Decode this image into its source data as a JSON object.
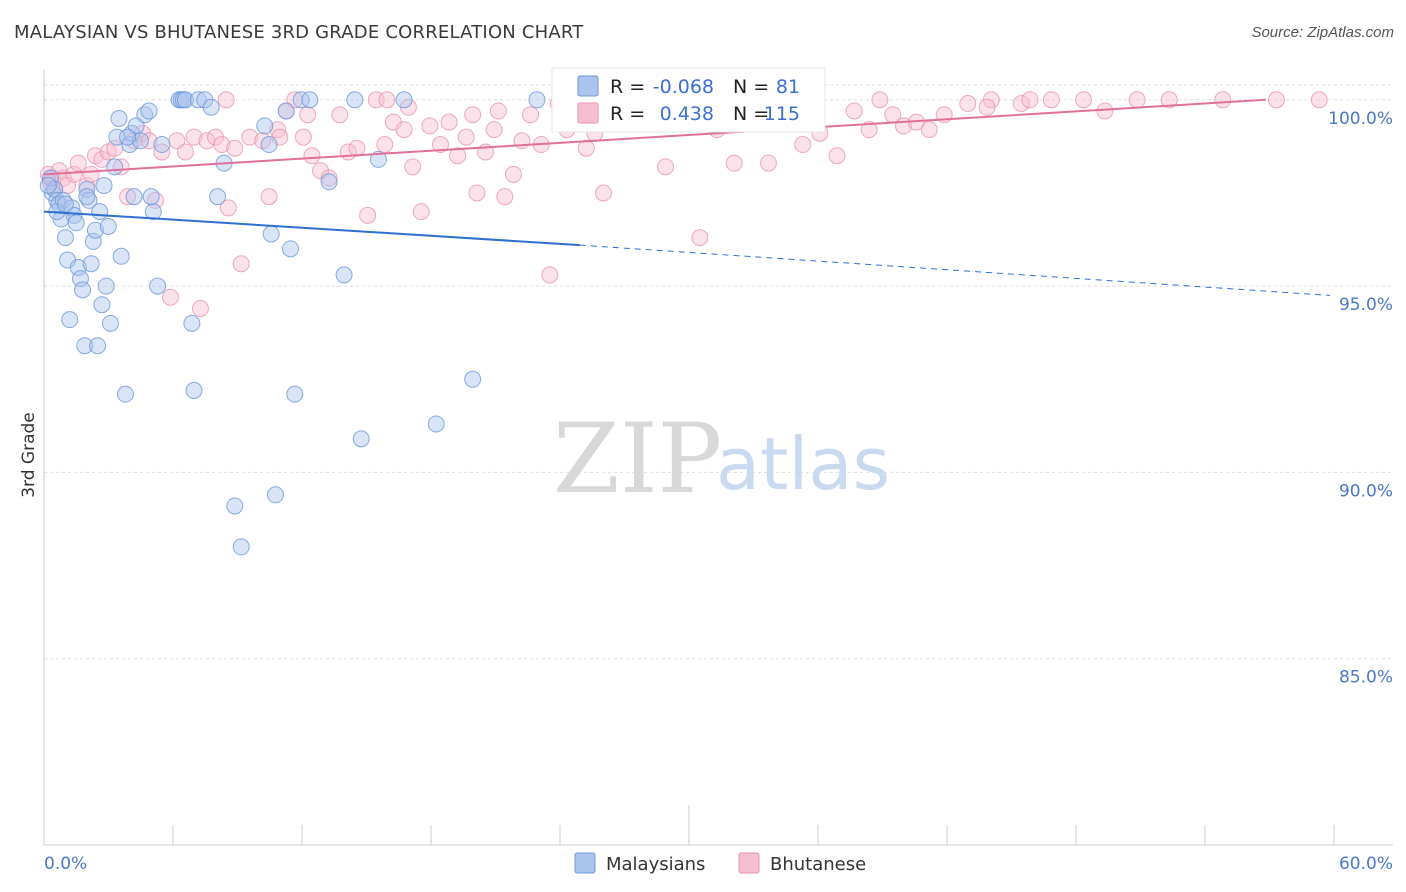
{
  "header": {
    "title": "MALAYSIAN VS BHUTANESE 3RD GRADE CORRELATION CHART",
    "source": "Source: ZipAtlas.com"
  },
  "watermark": {
    "zip": "ZIP",
    "atlas": "atlas"
  },
  "stats": {
    "r_label": "R =",
    "n_label": "N =",
    "rows": [
      {
        "r": "-0.068",
        "n": "81"
      },
      {
        "r": "0.438",
        "n": "115"
      }
    ]
  },
  "colors": {
    "malaysians_fill": "#aac4ee",
    "malaysians_stroke": "#6d97d9",
    "malaysians_line": "#2f6fd0",
    "bhutanese_fill": "#f6bfd0",
    "bhutanese_stroke": "#e895b2",
    "bhutanese_line": "#e0709a",
    "tick_text": "#4a78c8",
    "grid": "#dddddd"
  },
  "chart_data": {
    "type": "scatter",
    "title": "MALAYSIAN VS BHUTANESE 3RD GRADE CORRELATION CHART",
    "xlabel": "",
    "ylabel": "3rd Grade",
    "xlim": [
      0,
      60
    ],
    "ylim": [
      80,
      100.8
    ],
    "x_tick_labels": [
      "0.0%",
      "60.0%"
    ],
    "y_ticks": [
      85,
      90,
      95,
      100
    ],
    "y_tick_labels": [
      "85.0%",
      "90.0%",
      "95.0%",
      "100.0%"
    ],
    "grid": true,
    "legend_position": "bottom-center",
    "series": [
      {
        "name": "Malaysians",
        "r": -0.068,
        "n": 81,
        "trend": {
          "x0": 0,
          "y0": 97.0,
          "x1": 25,
          "y1": 96.1,
          "dashed_to_x": 60,
          "dashed_to_y": 94.75
        },
        "points": [
          [
            0.3,
            97.9
          ],
          [
            0.4,
            97.5
          ],
          [
            0.5,
            97.6
          ],
          [
            0.6,
            97.3
          ],
          [
            0.7,
            97.2
          ],
          [
            0.9,
            97.3
          ],
          [
            0.8,
            96.8
          ],
          [
            1.0,
            96.3
          ],
          [
            1.1,
            95.7
          ],
          [
            1.3,
            97.1
          ],
          [
            1.4,
            96.9
          ],
          [
            1.5,
            96.7
          ],
          [
            1.6,
            95.5
          ],
          [
            1.7,
            95.2
          ],
          [
            1.8,
            94.9
          ],
          [
            2.0,
            97.6
          ],
          [
            2.1,
            97.3
          ],
          [
            2.2,
            95.6
          ],
          [
            2.3,
            96.2
          ],
          [
            2.4,
            96.5
          ],
          [
            2.6,
            97.0
          ],
          [
            2.7,
            94.5
          ],
          [
            2.8,
            97.7
          ],
          [
            2.9,
            95.0
          ],
          [
            3.0,
            96.6
          ],
          [
            3.3,
            98.2
          ],
          [
            3.4,
            99.0
          ],
          [
            3.5,
            99.5
          ],
          [
            3.6,
            95.8
          ],
          [
            3.8,
            92.1
          ],
          [
            4.0,
            98.8
          ],
          [
            4.1,
            99.1
          ],
          [
            4.3,
            99.3
          ],
          [
            4.5,
            98.9
          ],
          [
            4.7,
            99.6
          ],
          [
            4.9,
            99.7
          ],
          [
            5.1,
            97.0
          ],
          [
            5.3,
            95.0
          ],
          [
            5.5,
            98.8
          ],
          [
            6.3,
            100.0
          ],
          [
            6.4,
            100.0
          ],
          [
            6.5,
            100.0
          ],
          [
            6.6,
            100.0
          ],
          [
            6.9,
            94.0
          ],
          [
            7.0,
            92.2
          ],
          [
            7.2,
            100.0
          ],
          [
            7.5,
            100.0
          ],
          [
            7.8,
            99.8
          ],
          [
            8.1,
            97.4
          ],
          [
            8.4,
            98.3
          ],
          [
            8.9,
            89.1
          ],
          [
            9.2,
            88.0
          ],
          [
            10.3,
            99.3
          ],
          [
            10.5,
            98.8
          ],
          [
            10.6,
            96.4
          ],
          [
            10.8,
            89.4
          ],
          [
            11.3,
            99.7
          ],
          [
            11.5,
            96.0
          ],
          [
            11.7,
            92.1
          ],
          [
            12.0,
            100.0
          ],
          [
            12.4,
            100.0
          ],
          [
            13.3,
            97.8
          ],
          [
            14.0,
            95.3
          ],
          [
            14.5,
            100.0
          ],
          [
            14.8,
            90.9
          ],
          [
            15.6,
            98.4
          ],
          [
            16.8,
            100.0
          ],
          [
            18.3,
            91.3
          ],
          [
            20.0,
            92.5
          ],
          [
            23.0,
            100.0
          ],
          [
            5.0,
            97.4
          ],
          [
            4.2,
            97.4
          ],
          [
            1.9,
            93.4
          ],
          [
            1.2,
            94.1
          ],
          [
            3.1,
            94.0
          ],
          [
            2.5,
            93.4
          ],
          [
            0.2,
            97.7
          ],
          [
            0.6,
            97.0
          ],
          [
            1.0,
            97.2
          ],
          [
            3.9,
            99.0
          ],
          [
            2.0,
            97.4
          ]
        ]
      },
      {
        "name": "Bhutanese",
        "r": 0.438,
        "n": 115,
        "trend": {
          "x0": 0,
          "y0": 98.0,
          "x1": 57,
          "y1": 100.0
        },
        "points": [
          [
            0.2,
            98.0
          ],
          [
            0.3,
            97.8
          ],
          [
            0.4,
            97.9
          ],
          [
            0.5,
            97.6
          ],
          [
            0.7,
            98.1
          ],
          [
            0.9,
            97.9
          ],
          [
            1.1,
            97.7
          ],
          [
            1.4,
            98.0
          ],
          [
            1.6,
            98.3
          ],
          [
            2.0,
            97.7
          ],
          [
            2.2,
            98.0
          ],
          [
            2.4,
            98.5
          ],
          [
            2.7,
            98.4
          ],
          [
            3.0,
            98.6
          ],
          [
            3.3,
            98.7
          ],
          [
            3.6,
            98.2
          ],
          [
            3.9,
            97.4
          ],
          [
            4.2,
            98.9
          ],
          [
            4.6,
            99.1
          ],
          [
            4.9,
            98.9
          ],
          [
            5.2,
            97.3
          ],
          [
            5.5,
            98.6
          ],
          [
            5.9,
            94.7
          ],
          [
            6.2,
            98.9
          ],
          [
            6.6,
            98.6
          ],
          [
            7.0,
            99.0
          ],
          [
            7.3,
            94.4
          ],
          [
            7.6,
            98.9
          ],
          [
            8.0,
            99.0
          ],
          [
            8.3,
            98.8
          ],
          [
            8.6,
            97.1
          ],
          [
            8.9,
            98.7
          ],
          [
            9.2,
            95.6
          ],
          [
            9.6,
            99.0
          ],
          [
            10.2,
            98.9
          ],
          [
            10.5,
            97.4
          ],
          [
            10.9,
            99.2
          ],
          [
            11.3,
            99.7
          ],
          [
            11.7,
            100.0
          ],
          [
            12.1,
            99.0
          ],
          [
            12.5,
            98.5
          ],
          [
            12.9,
            98.1
          ],
          [
            13.3,
            97.9
          ],
          [
            13.8,
            99.6
          ],
          [
            14.2,
            98.6
          ],
          [
            14.6,
            98.7
          ],
          [
            15.1,
            96.9
          ],
          [
            15.5,
            100.0
          ],
          [
            15.9,
            98.8
          ],
          [
            16.3,
            99.4
          ],
          [
            16.8,
            99.2
          ],
          [
            17.2,
            98.2
          ],
          [
            17.6,
            97.0
          ],
          [
            18.0,
            99.3
          ],
          [
            18.5,
            98.8
          ],
          [
            18.9,
            99.4
          ],
          [
            19.3,
            98.5
          ],
          [
            19.7,
            99.0
          ],
          [
            20.2,
            97.5
          ],
          [
            20.6,
            98.6
          ],
          [
            21.0,
            99.2
          ],
          [
            21.5,
            97.4
          ],
          [
            21.9,
            98.0
          ],
          [
            22.3,
            98.9
          ],
          [
            22.7,
            99.6
          ],
          [
            23.2,
            98.8
          ],
          [
            23.6,
            95.3
          ],
          [
            24.0,
            99.9
          ],
          [
            24.4,
            99.2
          ],
          [
            25.3,
            98.7
          ],
          [
            25.7,
            99.1
          ],
          [
            26.1,
            97.5
          ],
          [
            26.6,
            99.5
          ],
          [
            27.4,
            99.6
          ],
          [
            28.2,
            99.4
          ],
          [
            29.0,
            98.2
          ],
          [
            29.8,
            99.5
          ],
          [
            30.6,
            96.3
          ],
          [
            31.4,
            99.2
          ],
          [
            32.2,
            98.3
          ],
          [
            33.0,
            99.7
          ],
          [
            33.8,
            98.3
          ],
          [
            34.6,
            99.4
          ],
          [
            35.4,
            98.8
          ],
          [
            36.2,
            99.1
          ],
          [
            37.0,
            98.5
          ],
          [
            37.8,
            99.7
          ],
          [
            38.5,
            99.2
          ],
          [
            39.0,
            100.0
          ],
          [
            39.6,
            99.6
          ],
          [
            40.1,
            99.3
          ],
          [
            40.7,
            99.4
          ],
          [
            41.3,
            99.2
          ],
          [
            42.0,
            99.6
          ],
          [
            43.1,
            99.9
          ],
          [
            44.2,
            100.0
          ],
          [
            45.6,
            99.9
          ],
          [
            46.0,
            100.0
          ],
          [
            47.0,
            100.0
          ],
          [
            48.5,
            100.0
          ],
          [
            49.5,
            99.7
          ],
          [
            51.0,
            100.0
          ],
          [
            52.5,
            100.0
          ],
          [
            55.0,
            100.0
          ],
          [
            57.5,
            100.0
          ],
          [
            59.5,
            100.0
          ],
          [
            8.5,
            100.0
          ],
          [
            11.0,
            99.0
          ],
          [
            12.3,
            99.6
          ],
          [
            16.0,
            100.0
          ],
          [
            17.0,
            99.8
          ],
          [
            20.0,
            99.6
          ],
          [
            21.2,
            99.7
          ],
          [
            26.8,
            99.8
          ],
          [
            44.0,
            99.8
          ]
        ]
      }
    ]
  },
  "legend": {
    "items": [
      {
        "label": "Malaysians"
      },
      {
        "label": "Bhutanese"
      }
    ]
  }
}
